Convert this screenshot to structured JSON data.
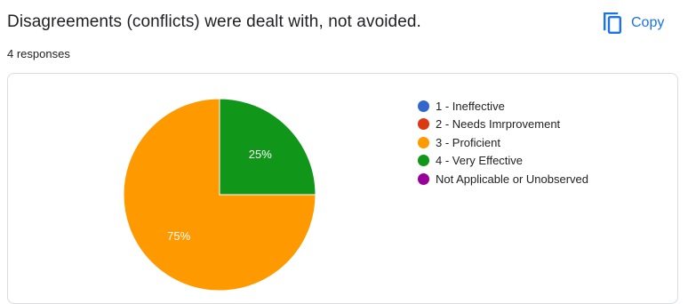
{
  "question": {
    "title": "Disagreements (conflicts) were dealt with, not avoided.",
    "responses": "4 responses"
  },
  "toolbar": {
    "copy_label": "Copy",
    "copy_icon": "copy-icon",
    "accent_color": "#1a73e8"
  },
  "chart_data": {
    "type": "pie",
    "title": "",
    "legend_position": "right",
    "slices": [
      {
        "label": "1 - Ineffective",
        "value": 0,
        "percent_label": "",
        "color": "#3366cc"
      },
      {
        "label": "2 - Needs Imrprovement",
        "value": 0,
        "percent_label": "",
        "color": "#dc3912"
      },
      {
        "label": "3 - Proficient",
        "value": 3,
        "percent_label": "75%",
        "color": "#ff9900"
      },
      {
        "label": "4 - Very Effective",
        "value": 1,
        "percent_label": "25%",
        "color": "#109618"
      },
      {
        "label": "Not Applicable or Unobserved",
        "value": 0,
        "percent_label": "",
        "color": "#990099"
      }
    ]
  }
}
